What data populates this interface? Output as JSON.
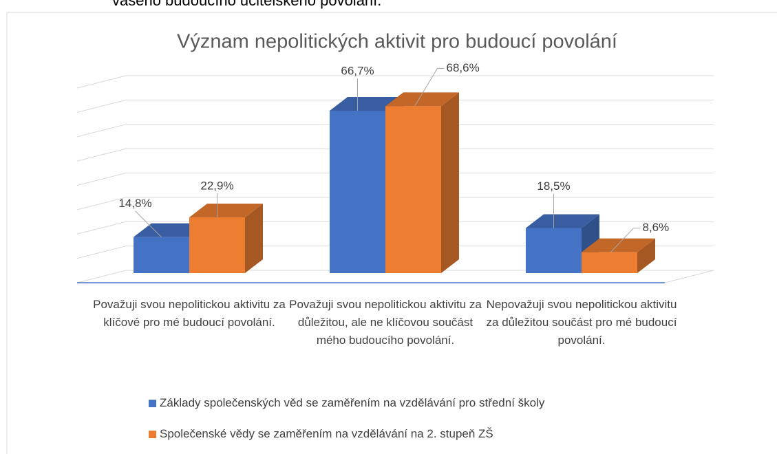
{
  "caption": "vašeho budoucího učitelského povolání.",
  "chart_data": {
    "type": "bar3d",
    "title": "Význam nepolitických aktivit pro budoucí povolání",
    "categories": [
      "Považuji svou nepolitickou aktivitu za klíčové pro mé budoucí povolání.",
      "Považuji svou nepolitickou aktivitu za důležitou, ale ne klíčovou součást mého budoucího povolání.",
      "Nepovažuji svou nepolitickou aktivitu za důležitou součást pro mé budoucí povolání."
    ],
    "series": [
      {
        "name": "Základy společenských věd se zaměřením na vzdělávání pro střední školy",
        "color": "#4472c4",
        "values": [
          14.8,
          66.7,
          18.5
        ],
        "value_labels": [
          "14,8%",
          "66,7%",
          "18,5%"
        ]
      },
      {
        "name": "Společenské vědy se zaměřením na vzdělávání na 2. stupeň ZŠ",
        "color": "#ed7d31",
        "values": [
          22.9,
          68.6,
          8.6
        ],
        "value_labels": [
          "22,9%",
          "68,6%",
          "8,6%"
        ]
      }
    ],
    "ylim": [
      0,
      80
    ],
    "yticks": [
      0,
      10,
      20,
      30,
      40,
      50,
      60,
      70,
      80
    ],
    "grid": true,
    "legend": "bottom"
  }
}
